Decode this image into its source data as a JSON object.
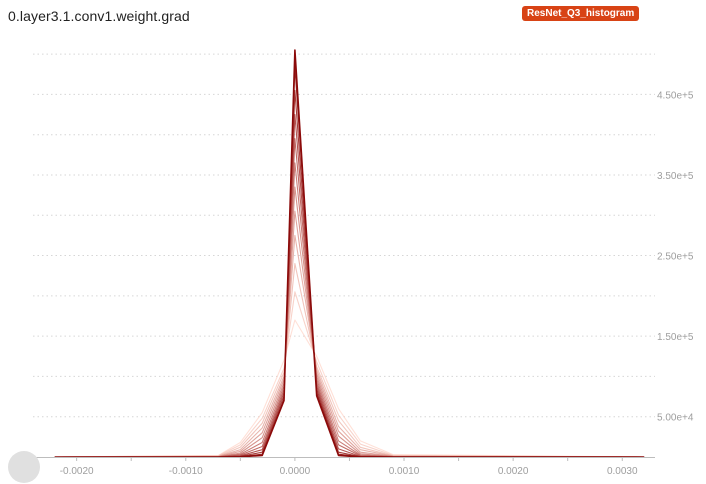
{
  "header": {
    "title": "0.layer3.1.conv1.weight.grad",
    "tag": "ResNet_Q3_histogram"
  },
  "colors": {
    "tag_background": "#d84315",
    "series_oldest": "#ffccbc",
    "series_newest": "#8b0a0a",
    "gridline": "#d6d6d6",
    "tick_text": "#9e9e9e"
  },
  "chart_data": {
    "type": "line",
    "title": "",
    "xlabel": "",
    "ylabel": "",
    "xlim": [
      -0.0024,
      0.0033
    ],
    "ylim": [
      0,
      520000
    ],
    "x_ticks": [
      -0.002,
      -0.001,
      0.0,
      0.001,
      0.002,
      0.003
    ],
    "x_tick_labels": [
      "-0.0020",
      "-0.0010",
      "0.0000",
      "0.0010",
      "0.0020",
      "0.0030"
    ],
    "y_ticks": [
      50000,
      150000,
      250000,
      350000,
      450000
    ],
    "y_tick_labels": [
      "5.00e+4",
      "1.50e+5",
      "2.50e+5",
      "3.50e+5",
      "4.50e+5"
    ],
    "y_axis_side": "right",
    "grid": "horizontal dotted",
    "legend": "none",
    "x": [
      -0.0022,
      -0.0007,
      -0.0005,
      -0.0003,
      -0.0001,
      0.0,
      0.0002,
      0.0004,
      0.0006,
      0.0009,
      0.0032
    ],
    "series": [
      {
        "values": [
          0,
          2000,
          18000,
          55000,
          120000,
          170000,
          125000,
          60000,
          20000,
          3000,
          0
        ]
      },
      {
        "values": [
          0,
          1500,
          15000,
          48000,
          110000,
          205000,
          118000,
          52000,
          16000,
          2000,
          0
        ]
      },
      {
        "values": [
          0,
          1000,
          12000,
          42000,
          105000,
          240000,
          112000,
          45000,
          12000,
          1500,
          0
        ]
      },
      {
        "values": [
          0,
          800,
          9000,
          36000,
          100000,
          275000,
          108000,
          38000,
          9000,
          1000,
          0
        ]
      },
      {
        "values": [
          0,
          500,
          7000,
          30000,
          96000,
          305000,
          104000,
          32000,
          6000,
          800,
          0
        ]
      },
      {
        "values": [
          0,
          300,
          5000,
          24000,
          92000,
          335000,
          100000,
          26000,
          4000,
          500,
          0
        ]
      },
      {
        "values": [
          0,
          200,
          3500,
          18000,
          88000,
          365000,
          96000,
          20000,
          2500,
          300,
          0
        ]
      },
      {
        "values": [
          0,
          100,
          2500,
          13000,
          84000,
          395000,
          92000,
          15000,
          1500,
          200,
          0
        ]
      },
      {
        "values": [
          0,
          50,
          1500,
          9000,
          80000,
          425000,
          88000,
          10000,
          800,
          100,
          0
        ]
      },
      {
        "values": [
          0,
          0,
          800,
          6000,
          76000,
          455000,
          84000,
          6000,
          400,
          0,
          0
        ]
      },
      {
        "values": [
          0,
          0,
          400,
          3500,
          72000,
          485000,
          80000,
          3500,
          200,
          0,
          0
        ]
      },
      {
        "values": [
          0,
          0,
          200,
          2000,
          70000,
          505000,
          76000,
          2000,
          100,
          0,
          0
        ]
      }
    ]
  }
}
